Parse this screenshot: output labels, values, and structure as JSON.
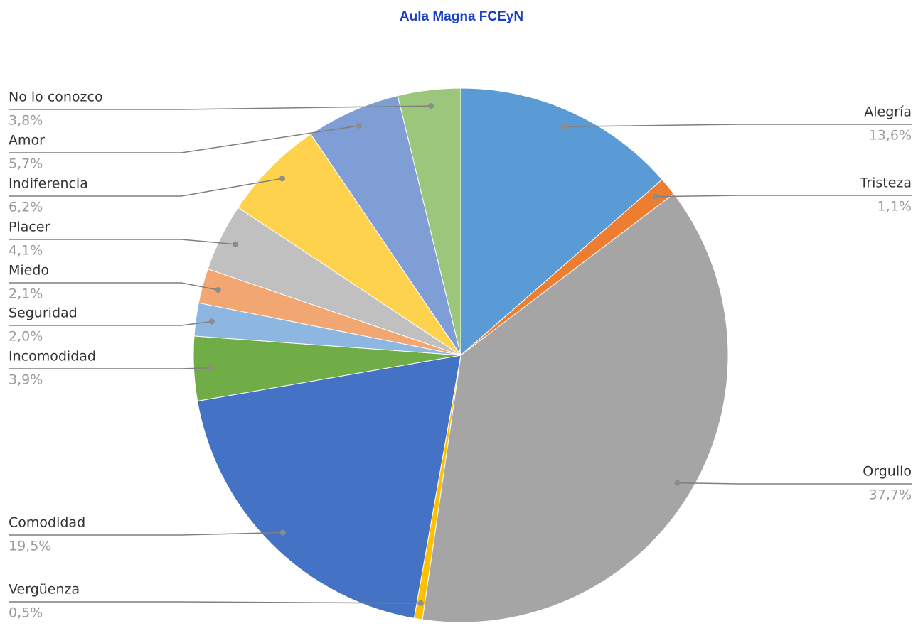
{
  "chart_data": {
    "type": "pie",
    "title": "Aula Magna FCEyN",
    "categories": [
      "Alegría",
      "Tristeza",
      "Orgullo",
      "Vergüenza",
      "Comodidad",
      "Incomodidad",
      "Seguridad",
      "Miedo",
      "Placer",
      "Indiferencia",
      "Amor",
      "No lo conozco"
    ],
    "values": [
      13.6,
      1.1,
      37.7,
      0.5,
      19.5,
      3.9,
      2.0,
      2.1,
      4.1,
      6.2,
      5.7,
      3.8
    ],
    "value_labels": [
      "13,6%",
      "1,1%",
      "37,7%",
      "0,5%",
      "19,5%",
      "3,9%",
      "2,0%",
      "2,1%",
      "4,1%",
      "6,2%",
      "5,7%",
      "3,8%"
    ],
    "colors": [
      "#5b9bd5",
      "#ed7d31",
      "#a5a5a5",
      "#ffc000",
      "#4472c4",
      "#70ad47",
      "#8db6e0",
      "#f2a772",
      "#c0c0c0",
      "#ffd24d",
      "#7f9ed6",
      "#9dc67d"
    ]
  }
}
